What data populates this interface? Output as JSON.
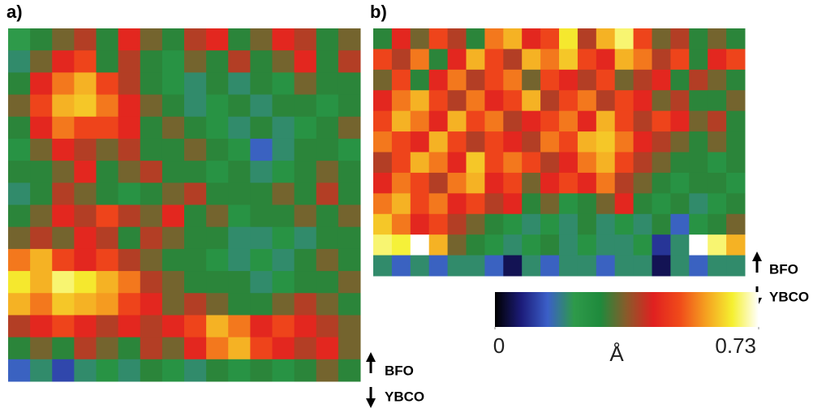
{
  "chart_data": [
    {
      "type": "heatmap",
      "panel_label": "a)",
      "annotations": [
        "BFO",
        "YBCO"
      ],
      "values": [
        [
          0.22,
          0.3,
          0.35,
          0.4,
          0.3,
          0.45,
          0.35,
          0.3,
          0.4,
          0.45,
          0.3,
          0.35,
          0.45,
          0.4,
          0.3,
          0.35
        ],
        [
          0.2,
          0.35,
          0.45,
          0.5,
          0.3,
          0.4,
          0.3,
          0.25,
          0.35,
          0.3,
          0.4,
          0.3,
          0.35,
          0.45,
          0.3,
          0.4
        ],
        [
          0.3,
          0.45,
          0.55,
          0.6,
          0.5,
          0.4,
          0.3,
          0.25,
          0.2,
          0.3,
          0.2,
          0.3,
          0.25,
          0.35,
          0.3,
          0.3
        ],
        [
          0.35,
          0.5,
          0.6,
          0.62,
          0.55,
          0.45,
          0.35,
          0.3,
          0.2,
          0.25,
          0.3,
          0.2,
          0.3,
          0.3,
          0.25,
          0.3
        ],
        [
          0.3,
          0.45,
          0.55,
          0.5,
          0.5,
          0.45,
          0.3,
          0.35,
          0.3,
          0.25,
          0.2,
          0.3,
          0.2,
          0.25,
          0.3,
          0.35
        ],
        [
          0.25,
          0.35,
          0.45,
          0.4,
          0.35,
          0.4,
          0.3,
          0.3,
          0.35,
          0.3,
          0.25,
          0.15,
          0.2,
          0.3,
          0.3,
          0.25
        ],
        [
          0.3,
          0.3,
          0.35,
          0.45,
          0.3,
          0.35,
          0.4,
          0.3,
          0.3,
          0.25,
          0.3,
          0.2,
          0.25,
          0.3,
          0.35,
          0.3
        ],
        [
          0.2,
          0.3,
          0.4,
          0.35,
          0.3,
          0.25,
          0.3,
          0.35,
          0.4,
          0.3,
          0.3,
          0.3,
          0.35,
          0.3,
          0.4,
          0.3
        ],
        [
          0.3,
          0.35,
          0.45,
          0.4,
          0.5,
          0.4,
          0.35,
          0.45,
          0.3,
          0.35,
          0.25,
          0.3,
          0.3,
          0.35,
          0.3,
          0.35
        ],
        [
          0.35,
          0.4,
          0.35,
          0.45,
          0.4,
          0.3,
          0.4,
          0.35,
          0.3,
          0.3,
          0.2,
          0.2,
          0.25,
          0.2,
          0.3,
          0.3
        ],
        [
          0.55,
          0.6,
          0.5,
          0.45,
          0.5,
          0.4,
          0.35,
          0.3,
          0.3,
          0.25,
          0.2,
          0.25,
          0.2,
          0.3,
          0.35,
          0.3
        ],
        [
          0.65,
          0.6,
          0.68,
          0.65,
          0.6,
          0.55,
          0.4,
          0.35,
          0.3,
          0.3,
          0.3,
          0.2,
          0.25,
          0.3,
          0.3,
          0.35
        ],
        [
          0.6,
          0.55,
          0.62,
          0.6,
          0.58,
          0.5,
          0.45,
          0.35,
          0.4,
          0.35,
          0.3,
          0.3,
          0.35,
          0.4,
          0.35,
          0.3
        ],
        [
          0.4,
          0.45,
          0.5,
          0.45,
          0.4,
          0.45,
          0.4,
          0.45,
          0.5,
          0.6,
          0.55,
          0.45,
          0.5,
          0.45,
          0.4,
          0.35
        ],
        [
          0.3,
          0.35,
          0.3,
          0.4,
          0.35,
          0.3,
          0.4,
          0.35,
          0.45,
          0.55,
          0.6,
          0.5,
          0.45,
          0.4,
          0.45,
          0.35
        ],
        [
          0.15,
          0.2,
          0.12,
          0.2,
          0.25,
          0.2,
          0.3,
          0.25,
          0.2,
          0.3,
          0.25,
          0.3,
          0.25,
          0.3,
          0.35,
          0.3
        ]
      ]
    },
    {
      "type": "heatmap",
      "panel_label": "b)",
      "annotations": [
        "BFO",
        "YBCO"
      ],
      "values": [
        [
          0.3,
          0.45,
          0.35,
          0.5,
          0.4,
          0.3,
          0.55,
          0.6,
          0.45,
          0.5,
          0.65,
          0.4,
          0.6,
          0.68,
          0.5,
          0.35,
          0.4,
          0.3,
          0.35,
          0.3
        ],
        [
          0.5,
          0.4,
          0.55,
          0.3,
          0.45,
          0.6,
          0.5,
          0.4,
          0.6,
          0.55,
          0.62,
          0.5,
          0.45,
          0.6,
          0.55,
          0.4,
          0.5,
          0.3,
          0.45,
          0.5
        ],
        [
          0.35,
          0.5,
          0.3,
          0.45,
          0.55,
          0.4,
          0.5,
          0.55,
          0.35,
          0.5,
          0.45,
          0.4,
          0.5,
          0.35,
          0.4,
          0.45,
          0.3,
          0.4,
          0.35,
          0.3
        ],
        [
          0.45,
          0.55,
          0.6,
          0.5,
          0.4,
          0.55,
          0.45,
          0.5,
          0.6,
          0.4,
          0.5,
          0.55,
          0.4,
          0.5,
          0.45,
          0.35,
          0.4,
          0.3,
          0.3,
          0.35
        ],
        [
          0.5,
          0.6,
          0.55,
          0.45,
          0.6,
          0.5,
          0.55,
          0.4,
          0.45,
          0.5,
          0.55,
          0.45,
          0.6,
          0.5,
          0.4,
          0.5,
          0.45,
          0.35,
          0.4,
          0.3
        ],
        [
          0.55,
          0.5,
          0.45,
          0.6,
          0.5,
          0.4,
          0.5,
          0.45,
          0.4,
          0.55,
          0.5,
          0.6,
          0.62,
          0.55,
          0.45,
          0.4,
          0.35,
          0.3,
          0.35,
          0.3
        ],
        [
          0.4,
          0.5,
          0.6,
          0.55,
          0.45,
          0.62,
          0.5,
          0.55,
          0.5,
          0.4,
          0.45,
          0.55,
          0.6,
          0.5,
          0.4,
          0.35,
          0.3,
          0.3,
          0.25,
          0.3
        ],
        [
          0.45,
          0.55,
          0.5,
          0.4,
          0.55,
          0.6,
          0.45,
          0.5,
          0.35,
          0.45,
          0.5,
          0.45,
          0.55,
          0.4,
          0.35,
          0.3,
          0.25,
          0.3,
          0.3,
          0.25
        ],
        [
          0.55,
          0.6,
          0.5,
          0.55,
          0.45,
          0.5,
          0.4,
          0.45,
          0.3,
          0.35,
          0.25,
          0.3,
          0.35,
          0.45,
          0.3,
          0.25,
          0.3,
          0.2,
          0.25,
          0.3
        ],
        [
          0.62,
          0.55,
          0.45,
          0.5,
          0.4,
          0.35,
          0.3,
          0.25,
          0.2,
          0.25,
          0.2,
          0.3,
          0.2,
          0.25,
          0.2,
          0.3,
          0.15,
          0.25,
          0.3,
          0.35
        ],
        [
          0.68,
          0.66,
          0.73,
          0.6,
          0.35,
          0.3,
          0.25,
          0.2,
          0.25,
          0.3,
          0.2,
          0.25,
          0.2,
          0.2,
          0.25,
          0.1,
          0.2,
          0.73,
          0.68,
          0.6
        ],
        [
          0.2,
          0.15,
          0.2,
          0.15,
          0.2,
          0.2,
          0.15,
          0.05,
          0.2,
          0.15,
          0.2,
          0.2,
          0.15,
          0.2,
          0.2,
          0.05,
          0.2,
          0.15,
          0.2,
          0.2
        ]
      ]
    }
  ],
  "colorbar": {
    "label": "Å",
    "lim": [
      0,
      0.73
    ],
    "ticks": [
      0,
      0.73
    ],
    "colors": [
      "#000000",
      "#1c1c7a",
      "#3b5fc8",
      "#2e9a4a",
      "#1f8a3c",
      "#8a5a2a",
      "#e02020",
      "#f04a1a",
      "#f5a020",
      "#f5f030",
      "#ffffff"
    ]
  }
}
